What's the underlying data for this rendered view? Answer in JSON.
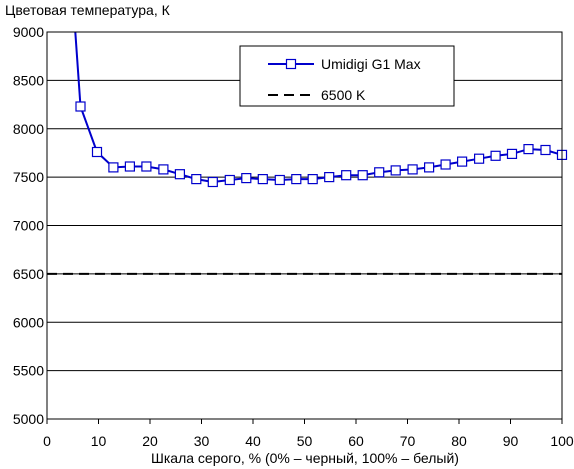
{
  "chart_data": {
    "type": "line",
    "title": "Цветовая температура, К",
    "xlabel": "Шкала серого, % (0% – черный, 100% – белый)",
    "ylabel": "",
    "xlim": [
      0,
      100
    ],
    "ylim": [
      5000,
      9000
    ],
    "xticks": [
      0,
      10,
      20,
      30,
      40,
      50,
      60,
      70,
      80,
      90,
      100
    ],
    "yticks": [
      5000,
      5500,
      6000,
      6500,
      7000,
      7500,
      8000,
      8500,
      9000
    ],
    "grid": "horizontal",
    "legend_position": "top-center",
    "series": [
      {
        "name": "Umidigi G1 Max",
        "color": "#0000cc",
        "marker": "square",
        "x": [
          5.5,
          6.5,
          9.7,
          12.9,
          16.1,
          19.3,
          22.6,
          25.8,
          29.0,
          32.2,
          35.5,
          38.7,
          41.9,
          45.2,
          48.4,
          51.6,
          54.8,
          58.1,
          61.3,
          64.5,
          67.7,
          71.0,
          74.2,
          77.4,
          80.6,
          83.9,
          87.1,
          90.3,
          93.5,
          96.8,
          100
        ],
        "y": [
          9000,
          8230,
          7760,
          7600,
          7610,
          7610,
          7580,
          7530,
          7480,
          7450,
          7470,
          7490,
          7480,
          7470,
          7480,
          7480,
          7500,
          7520,
          7520,
          7550,
          7570,
          7580,
          7600,
          7630,
          7660,
          7690,
          7720,
          7740,
          7790,
          7780,
          7730
        ]
      },
      {
        "name": "6500 K",
        "color": "#000000",
        "dash": "dashed",
        "x": [
          0,
          100
        ],
        "y": [
          6500,
          6500
        ]
      }
    ]
  }
}
